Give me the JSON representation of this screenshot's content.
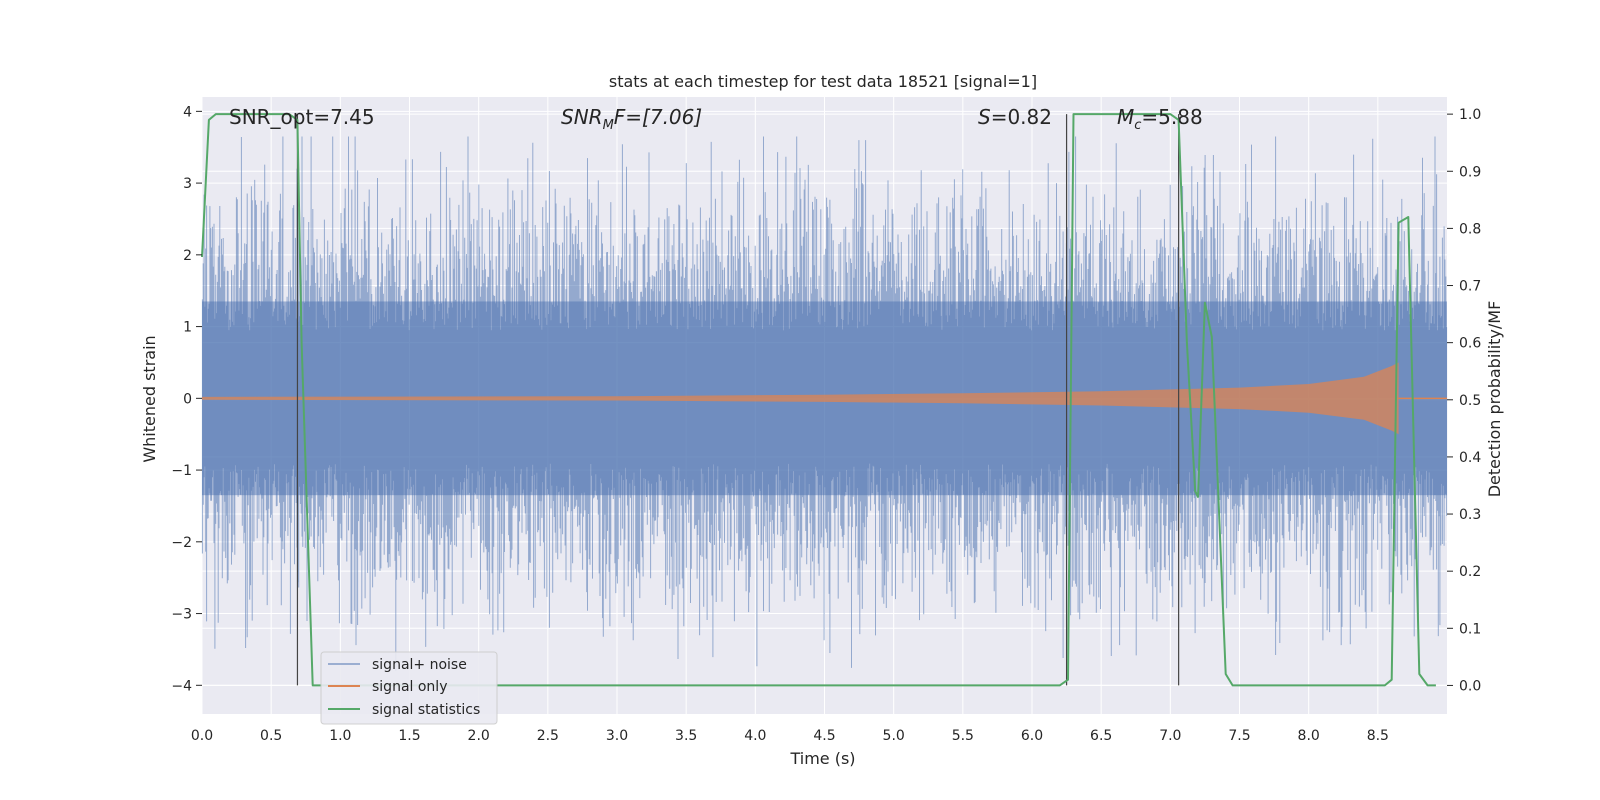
{
  "chart_data": {
    "type": "line",
    "title": "stats at each timestep for test data 18521 [signal=1]",
    "xlabel": "Time (s)",
    "ylabel": "Whitened strain",
    "y2label": "Detection probability/MF",
    "xlim": [
      0,
      9
    ],
    "ylim": [
      -4.4,
      4.2
    ],
    "y2lim": [
      -0.05,
      1.03
    ],
    "grid": true,
    "legend_position": "lower-left",
    "xticks": [
      0.0,
      0.5,
      1.0,
      1.5,
      2.0,
      2.5,
      3.0,
      3.5,
      4.0,
      4.5,
      5.0,
      5.5,
      6.0,
      6.5,
      7.0,
      7.5,
      8.0,
      8.5
    ],
    "xtick_labels": [
      "0.0",
      "0.5",
      "1.0",
      "1.5",
      "2.0",
      "2.5",
      "3.0",
      "3.5",
      "4.0",
      "4.5",
      "5.0",
      "5.5",
      "6.0",
      "6.5",
      "7.0",
      "7.5",
      "8.0",
      "8.5"
    ],
    "yticks": [
      -4,
      -3,
      -2,
      -1,
      0,
      1,
      2,
      3,
      4
    ],
    "ytick_labels": [
      "−4",
      "−3",
      "−2",
      "−1",
      "0",
      "1",
      "2",
      "3",
      "4"
    ],
    "y2ticks": [
      0.0,
      0.1,
      0.2,
      0.3,
      0.4,
      0.5,
      0.6,
      0.7,
      0.8,
      0.9,
      1.0
    ],
    "y2tick_labels": [
      "0.0",
      "0.1",
      "0.2",
      "0.3",
      "0.4",
      "0.5",
      "0.6",
      "0.7",
      "0.8",
      "0.9",
      "1.0"
    ],
    "annotations": {
      "snr_opt": "SNR_opt=7.45",
      "snr_mf_sym": "SNR",
      "snr_mf_sub": "M",
      "snr_mf_rest": "F=[7.06]",
      "s_sym": "S",
      "s_rest": "=0.82",
      "mc_sym": "M",
      "mc_sub": "c",
      "mc_rest": "=5.88"
    },
    "vertical_markers": [
      0.69,
      6.25,
      7.06
    ],
    "series": [
      {
        "name": "signal+ noise",
        "color": "#4c72b0",
        "alpha": 0.5,
        "axis": "left",
        "kind": "noise",
        "typical_range": [
          -2.6,
          2.7
        ],
        "extremes": [
          -3.8,
          3.65
        ]
      },
      {
        "name": "signal only",
        "color": "#dd8452",
        "axis": "left",
        "kind": "chirp",
        "envelope": {
          "t": [
            0,
            3.0,
            4.5,
            5.5,
            6.5,
            7.5,
            8.0,
            8.4,
            8.6,
            8.65
          ],
          "amp": [
            0.02,
            0.03,
            0.05,
            0.07,
            0.1,
            0.15,
            0.2,
            0.3,
            0.45,
            0.5
          ]
        }
      },
      {
        "name": "signal statistics",
        "color": "#55a868",
        "axis": "right",
        "x": [
          0.0,
          0.05,
          0.1,
          0.63,
          0.69,
          0.72,
          0.8,
          6.2,
          6.26,
          6.3,
          6.36,
          7.0,
          7.06,
          7.12,
          7.18,
          7.2,
          7.25,
          7.3,
          7.4,
          7.45,
          8.55,
          8.6,
          8.65,
          8.72,
          8.8,
          8.86,
          8.92
        ],
        "y": [
          0.75,
          0.99,
          1.0,
          1.0,
          0.99,
          0.6,
          0.0,
          0.0,
          0.01,
          1.0,
          1.0,
          1.0,
          0.99,
          0.6,
          0.34,
          0.33,
          0.67,
          0.61,
          0.02,
          0.0,
          0.0,
          0.01,
          0.81,
          0.82,
          0.02,
          0.0,
          0.0
        ]
      }
    ]
  }
}
